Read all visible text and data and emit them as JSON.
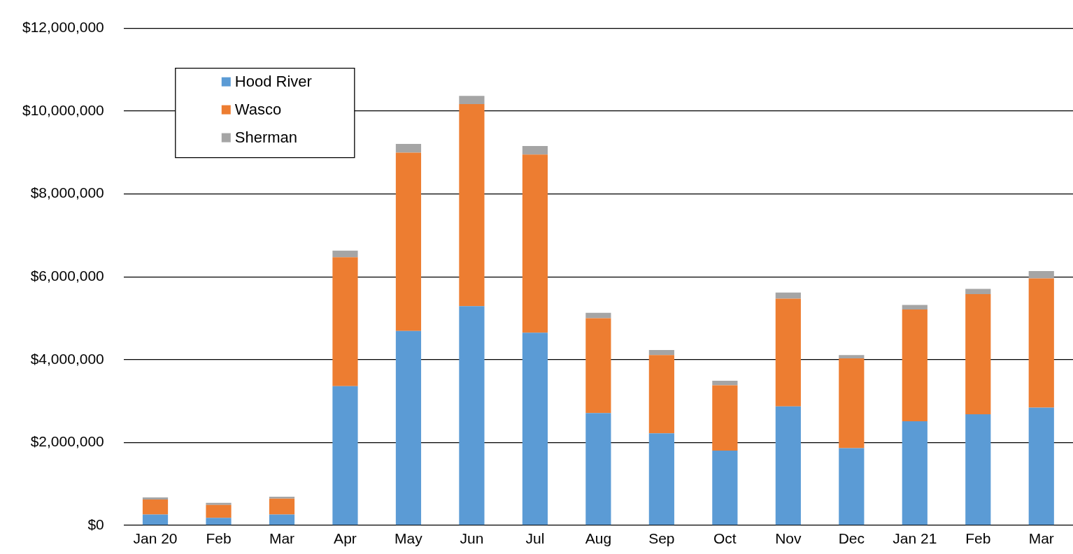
{
  "chart_data": {
    "type": "bar",
    "stacked": true,
    "categories": [
      "Jan 20",
      "Feb",
      "Mar",
      "Apr",
      "May",
      "Jun",
      "Jul",
      "Aug",
      "Sep",
      "Oct",
      "Nov",
      "Dec",
      "Jan 21",
      "Feb",
      "Mar"
    ],
    "series": [
      {
        "name": "Hood River",
        "color": "#5b9bd5",
        "values": [
          260000,
          180000,
          260000,
          3360000,
          4690000,
          5290000,
          4650000,
          2710000,
          2220000,
          1800000,
          2870000,
          1860000,
          2510000,
          2680000,
          2840000
        ]
      },
      {
        "name": "Wasco",
        "color": "#ed7d31",
        "values": [
          360000,
          310000,
          380000,
          3110000,
          4310000,
          4880000,
          4300000,
          2290000,
          1890000,
          1580000,
          2600000,
          2170000,
          2700000,
          2900000,
          3120000
        ]
      },
      {
        "name": "Sherman",
        "color": "#a5a5a5",
        "values": [
          50000,
          50000,
          50000,
          160000,
          210000,
          200000,
          210000,
          130000,
          120000,
          110000,
          150000,
          80000,
          110000,
          130000,
          180000
        ]
      }
    ],
    "ylim": [
      0,
      12000000
    ],
    "yticks": [
      {
        "value": 0,
        "label": "$0"
      },
      {
        "value": 2000000,
        "label": "$2,000,000"
      },
      {
        "value": 4000000,
        "label": "$4,000,000"
      },
      {
        "value": 6000000,
        "label": "$6,000,000"
      },
      {
        "value": 8000000,
        "label": "$8,000,000"
      },
      {
        "value": 10000000,
        "label": "$10,000,000"
      },
      {
        "value": 12000000,
        "label": "$12,000,000"
      }
    ],
    "grid": "y",
    "legend": "top left"
  }
}
